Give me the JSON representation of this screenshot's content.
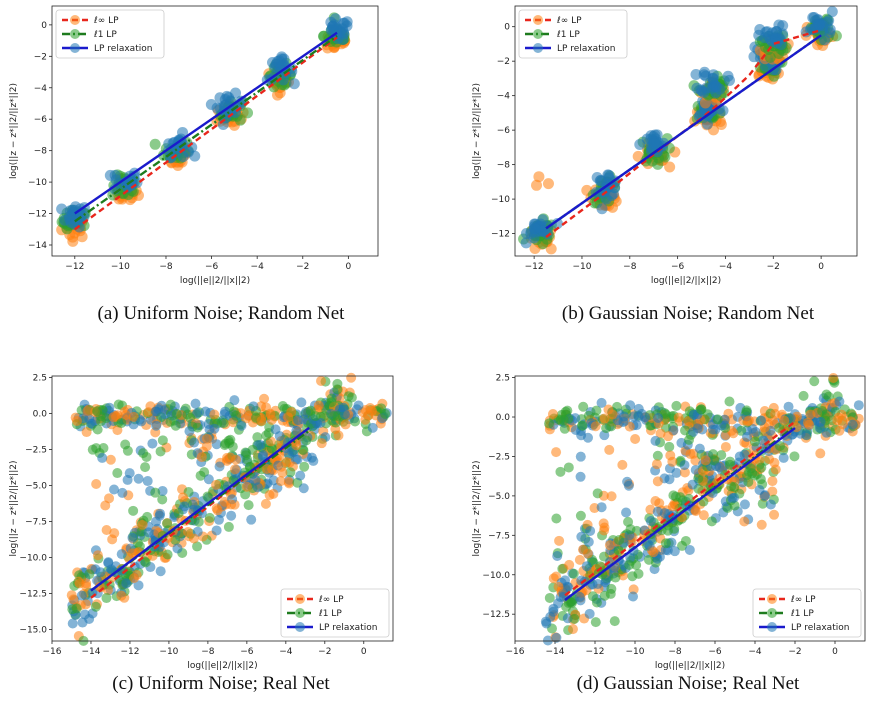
{
  "colors": {
    "linf": "#ff7f0e",
    "l1": "#2ca02c",
    "lp": "#1f77b4",
    "linf_line": "#e8261c",
    "l1_line": "#1e7b1e",
    "lp_line": "#1a1acc"
  },
  "legend_labels": [
    "ℓ∞ LP",
    "ℓ1 LP",
    "LP relaxation"
  ],
  "chart_data": [
    {
      "type": "scatter",
      "caption": "(a) Uniform Noise; Random Net",
      "xlabel": "log(||e||2/||x||2)",
      "ylabel": "log(||z − z*||2/||z*||2)",
      "xlim": [
        -13,
        1.3
      ],
      "ylim": [
        -14.7,
        1.2
      ],
      "xticks": [
        -12,
        -10,
        -8,
        -6,
        -4,
        -2,
        0
      ],
      "yticks": [
        -14,
        -12,
        -10,
        -8,
        -6,
        -4,
        -2,
        0
      ],
      "legend": "top-left",
      "series": [
        {
          "name": "ℓ∞ LP",
          "line": [
            [
              -12,
              -13.0
            ],
            [
              -0.5,
              -0.8
            ]
          ]
        },
        {
          "name": "ℓ1 LP",
          "line": [
            [
              -12,
              -12.5
            ],
            [
              -0.5,
              -0.7
            ]
          ]
        },
        {
          "name": "LP relaxation",
          "line": [
            [
              -12,
              -12.0
            ],
            [
              -0.5,
              -0.5
            ]
          ]
        }
      ],
      "clusters": [
        [
          -12,
          -12.5
        ],
        [
          -9.8,
          -10.3
        ],
        [
          -7.5,
          -8.0
        ],
        [
          -5.2,
          -5.5
        ],
        [
          -3,
          -3.2
        ],
        [
          -0.5,
          -0.7
        ]
      ]
    },
    {
      "type": "scatter",
      "caption": "(b) Gaussian Noise; Random Net",
      "xlabel": "log(||e||2/||x||2)",
      "ylabel": "log(||z − z*||2/||z*||2)",
      "xlim": [
        -12.8,
        1.5
      ],
      "ylim": [
        -13.3,
        1.2
      ],
      "xticks": [
        -12,
        -10,
        -8,
        -6,
        -4,
        -2,
        0
      ],
      "yticks": [
        -12,
        -10,
        -8,
        -6,
        -4,
        -2,
        0
      ],
      "legend": "top-left",
      "series": [
        {
          "name": "ℓ∞ LP",
          "line": [
            [
              -11.5,
              -12.2
            ],
            [
              -9,
              -9.6
            ],
            [
              -7,
              -7.4
            ],
            [
              -5,
              -5.3
            ],
            [
              -4.3,
              -4.5
            ],
            [
              -3,
              -2.8
            ],
            [
              -2,
              -1.0
            ],
            [
              -1,
              -0.6
            ],
            [
              0,
              -0.2
            ]
          ]
        },
        {
          "name": "ℓ1 LP",
          "line": [
            [
              -11.5,
              -11.7
            ],
            [
              0,
              -0.5
            ]
          ]
        },
        {
          "name": "LP relaxation",
          "line": [
            [
              -11.5,
              -11.7
            ],
            [
              0,
              -0.5
            ]
          ]
        }
      ],
      "clusters": [
        [
          -11.7,
          -12
        ],
        [
          -9,
          -9.5
        ],
        [
          -7,
          -7.2
        ],
        [
          -4.7,
          -5.0
        ],
        [
          -4.5,
          -3.5
        ],
        [
          -2.3,
          -2.2
        ],
        [
          -2,
          -1.0
        ],
        [
          0,
          -0.2
        ]
      ]
    },
    {
      "type": "scatter",
      "caption": "(c) Uniform Noise; Real Net",
      "xlabel": "log(||e||2/||x||2)",
      "ylabel": "log(||z − z*||2/||z*||2)",
      "xlim": [
        -16,
        1.5
      ],
      "ylim": [
        -15.8,
        2.6
      ],
      "xticks": [
        -16,
        -14,
        -12,
        -10,
        -8,
        -6,
        -4,
        -2,
        0
      ],
      "yticks": [
        -15.0,
        -12.5,
        -10.0,
        -7.5,
        -5.0,
        -2.5,
        0.0,
        2.5
      ],
      "legend": "bottom-right",
      "series": [
        {
          "name": "ℓ∞ LP",
          "line": [
            [
              -14,
              -12.8
            ],
            [
              -2.8,
              -1.0
            ]
          ]
        },
        {
          "name": "ℓ1 LP",
          "line": [
            [
              -14,
              -12.3
            ],
            [
              -2.8,
              -1.2
            ]
          ]
        },
        {
          "name": "LP relaxation",
          "line": [
            [
              -14,
              -12.3
            ],
            [
              -2.8,
              -1.0
            ]
          ]
        }
      ]
    },
    {
      "type": "scatter",
      "caption": "(d) Gaussian Noise; Real Net",
      "xlabel": "log(||e||2/||x||2)",
      "ylabel": "log(||z − z*||2/||z*||2)",
      "xlim": [
        -16,
        1.5
      ],
      "ylim": [
        -14.2,
        2.6
      ],
      "xticks": [
        -16,
        -14,
        -12,
        -10,
        -8,
        -6,
        -4,
        -2,
        0
      ],
      "yticks": [
        -12.5,
        -10.0,
        -7.5,
        -5.0,
        -2.5,
        0.0,
        2.5
      ],
      "legend": "bottom-right",
      "series": [
        {
          "name": "ℓ∞ LP",
          "line": [
            [
              -13.5,
              -11.3
            ],
            [
              -2,
              -0.3
            ]
          ]
        },
        {
          "name": "ℓ1 LP",
          "line": [
            [
              -13.5,
              -11.6
            ],
            [
              -2,
              -0.6
            ]
          ]
        },
        {
          "name": "LP relaxation",
          "line": [
            [
              -13.5,
              -11.6
            ],
            [
              -2,
              -0.7
            ]
          ]
        }
      ]
    }
  ]
}
